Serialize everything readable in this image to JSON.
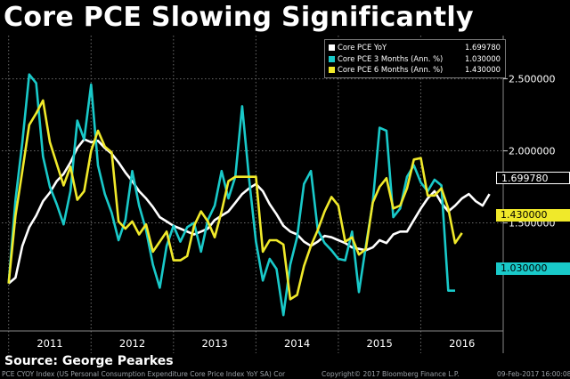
{
  "chart_data": {
    "type": "line",
    "title": "Core PCE Slowing Significantly",
    "x_labels": [
      "2011",
      "2012",
      "2013",
      "2014",
      "2015",
      "2016"
    ],
    "x_range": [
      0,
      73
    ],
    "ylim": [
      0.75,
      2.8
    ],
    "y_ticks": [
      "2.500000",
      "2.000000",
      "1.500000"
    ],
    "y_tick_values": [
      2.5,
      2.0,
      1.5
    ],
    "grid": true,
    "legend_position": "top-right",
    "series": [
      {
        "name": "Core PCE YoY",
        "color": "#ffffff",
        "last_value": "1.699780",
        "values": [
          1.08,
          1.12,
          1.34,
          1.47,
          1.55,
          1.65,
          1.71,
          1.79,
          1.84,
          1.92,
          2.02,
          2.08,
          2.06,
          2.07,
          2.02,
          1.98,
          1.92,
          1.85,
          1.79,
          1.72,
          1.67,
          1.61,
          1.54,
          1.51,
          1.48,
          1.46,
          1.44,
          1.42,
          1.44,
          1.46,
          1.52,
          1.55,
          1.58,
          1.64,
          1.7,
          1.74,
          1.77,
          1.72,
          1.63,
          1.56,
          1.48,
          1.44,
          1.42,
          1.37,
          1.34,
          1.37,
          1.41,
          1.4,
          1.38,
          1.36,
          1.33,
          1.32,
          1.31,
          1.33,
          1.38,
          1.36,
          1.42,
          1.44,
          1.44,
          1.52,
          1.6,
          1.67,
          1.72,
          1.64,
          1.58,
          1.62,
          1.67,
          1.7,
          1.65,
          1.62,
          1.7
        ]
      },
      {
        "name": "Core PCE 3 Months (Ann. %)",
        "color": "#19c9c9",
        "last_value": "1.030000",
        "values": [
          1.08,
          1.66,
          2.06,
          2.53,
          2.47,
          1.96,
          1.75,
          1.63,
          1.49,
          1.72,
          2.21,
          2.08,
          2.46,
          1.9,
          1.7,
          1.57,
          1.38,
          1.52,
          1.86,
          1.62,
          1.45,
          1.21,
          1.05,
          1.34,
          1.48,
          1.37,
          1.47,
          1.5,
          1.3,
          1.52,
          1.62,
          1.86,
          1.67,
          1.82,
          2.31,
          1.81,
          1.37,
          1.1,
          1.25,
          1.18,
          0.86,
          1.21,
          1.4,
          1.77,
          1.86,
          1.45,
          1.36,
          1.31,
          1.25,
          1.24,
          1.44,
          1.02,
          1.34,
          1.64,
          2.16,
          2.14,
          1.54,
          1.6,
          1.82,
          1.9,
          1.78,
          1.72,
          1.8,
          1.76,
          1.03,
          1.03
        ]
      },
      {
        "name": "Core PCE 6 Months (Ann. %)",
        "color": "#f0e92a",
        "last_value": "1.430000",
        "values": [
          1.08,
          1.55,
          1.86,
          2.18,
          2.26,
          2.35,
          2.06,
          1.91,
          1.76,
          1.89,
          1.66,
          1.72,
          2.0,
          2.14,
          2.03,
          1.99,
          1.51,
          1.46,
          1.51,
          1.42,
          1.49,
          1.3,
          1.37,
          1.44,
          1.24,
          1.24,
          1.27,
          1.48,
          1.58,
          1.51,
          1.4,
          1.58,
          1.79,
          1.82,
          1.82,
          1.82,
          1.82,
          1.3,
          1.38,
          1.38,
          1.35,
          0.97,
          1.0,
          1.2,
          1.34,
          1.45,
          1.58,
          1.68,
          1.62,
          1.37,
          1.4,
          1.28,
          1.32,
          1.64,
          1.75,
          1.81,
          1.6,
          1.62,
          1.74,
          1.94,
          1.95,
          1.69,
          1.69,
          1.74,
          1.6,
          1.36,
          1.43
        ]
      }
    ]
  },
  "source": "Source: George Pearkes",
  "footer_left": "PCE CYOY Index (US Personal Consumption Expenditure Core Price Index YoY SA) Cor",
  "footer_center": "Copyright© 2017 Bloomberg Finance L.P.",
  "footer_right": "09-Feb-2017 16:00:08"
}
